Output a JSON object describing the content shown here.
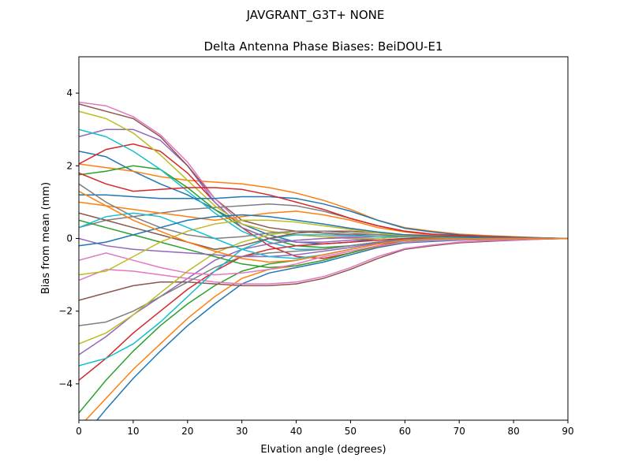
{
  "figure": {
    "suptitle": "JAVGRANT_G3T+   NONE"
  },
  "chart_data": {
    "type": "line",
    "title": "Delta Antenna Phase Biases: BeiDOU-E1",
    "xlabel": "Elvation angle (degrees)",
    "ylabel": "Bias from mean (mm)",
    "xlim": [
      0,
      90
    ],
    "ylim": [
      -5,
      5
    ],
    "xticks": [
      0,
      10,
      20,
      30,
      40,
      50,
      60,
      70,
      80,
      90
    ],
    "yticks": [
      -4,
      -2,
      0,
      2,
      4
    ],
    "grid": false,
    "colors": [
      "#1f77b4",
      "#ff7f0e",
      "#2ca02c",
      "#d62728",
      "#9467bd",
      "#8c564b",
      "#e377c2",
      "#7f7f7f",
      "#bcbd22",
      "#17becf"
    ],
    "x": [
      0,
      5,
      10,
      15,
      20,
      25,
      30,
      35,
      40,
      45,
      50,
      55,
      60,
      65,
      70,
      75,
      80,
      85,
      90
    ],
    "series": [
      {
        "values": [
          2.4,
          2.25,
          1.85,
          1.5,
          1.2,
          0.8,
          0.4,
          0.1,
          -0.1,
          -0.15,
          -0.1,
          0.0,
          0.05,
          0.05,
          0.05,
          0.03,
          0.02,
          0.01,
          0
        ]
      },
      {
        "values": [
          2.05,
          1.95,
          1.85,
          1.7,
          1.6,
          1.55,
          1.5,
          1.4,
          1.25,
          1.05,
          0.8,
          0.5,
          0.3,
          0.2,
          0.12,
          0.08,
          0.05,
          0.02,
          0
        ]
      },
      {
        "values": [
          1.75,
          1.85,
          2.0,
          1.9,
          1.4,
          0.8,
          0.3,
          0.0,
          -0.2,
          -0.25,
          -0.2,
          -0.1,
          0.0,
          0.05,
          0.05,
          0.03,
          0.02,
          0.01,
          0
        ]
      },
      {
        "values": [
          2.05,
          2.45,
          2.6,
          2.4,
          1.8,
          1.0,
          0.3,
          -0.2,
          -0.5,
          -0.55,
          -0.4,
          -0.2,
          -0.05,
          0.02,
          0.04,
          0.03,
          0.02,
          0.01,
          0
        ]
      },
      {
        "values": [
          2.8,
          3.0,
          3.0,
          2.7,
          2.0,
          1.0,
          0.3,
          0.0,
          -0.1,
          -0.1,
          -0.05,
          0.0,
          0.05,
          0.05,
          0.04,
          0.03,
          0.02,
          0.01,
          0
        ]
      },
      {
        "values": [
          3.7,
          3.5,
          3.3,
          2.8,
          2.0,
          1.1,
          0.5,
          0.3,
          0.2,
          0.15,
          0.1,
          0.1,
          0.1,
          0.08,
          0.06,
          0.04,
          0.02,
          0.01,
          0
        ]
      },
      {
        "values": [
          3.75,
          3.65,
          3.35,
          2.85,
          2.1,
          1.1,
          0.4,
          0.2,
          0.1,
          0.05,
          0.05,
          0.1,
          0.1,
          0.1,
          0.05,
          0.05,
          0.02,
          0.01,
          0
        ]
      },
      {
        "values": [
          0.3,
          0.5,
          0.6,
          0.7,
          0.8,
          0.85,
          0.9,
          0.95,
          0.9,
          0.75,
          0.55,
          0.35,
          0.2,
          0.12,
          0.08,
          0.05,
          0.03,
          0.01,
          0
        ]
      },
      {
        "values": [
          3.5,
          3.3,
          2.9,
          2.3,
          1.6,
          0.9,
          0.4,
          0.2,
          0.1,
          0.05,
          0.0,
          0.0,
          0.05,
          0.05,
          0.04,
          0.03,
          0.02,
          0.01,
          0
        ]
      },
      {
        "values": [
          3.0,
          2.8,
          2.4,
          1.9,
          1.3,
          0.7,
          0.2,
          -0.1,
          -0.3,
          -0.3,
          -0.2,
          -0.1,
          0.0,
          0.03,
          0.03,
          0.02,
          0.01,
          0.01,
          0
        ]
      },
      {
        "values": [
          -5.6,
          -4.7,
          -3.85,
          -3.1,
          -2.4,
          -1.8,
          -1.25,
          -0.95,
          -0.8,
          -0.65,
          -0.45,
          -0.25,
          -0.12,
          -0.08,
          -0.05,
          -0.03,
          -0.02,
          -0.01,
          0
        ]
      },
      {
        "values": [
          -5.2,
          -4.4,
          -3.6,
          -2.9,
          -2.2,
          -1.6,
          -1.1,
          -0.85,
          -0.75,
          -0.6,
          -0.4,
          -0.22,
          -0.1,
          -0.06,
          -0.04,
          -0.03,
          -0.02,
          -0.01,
          0
        ]
      },
      {
        "values": [
          -4.8,
          -3.9,
          -3.1,
          -2.4,
          -1.8,
          -1.3,
          -0.9,
          -0.7,
          -0.6,
          -0.45,
          -0.3,
          -0.15,
          -0.05,
          -0.03,
          -0.02,
          -0.01,
          -0.01,
          0,
          0
        ]
      },
      {
        "values": [
          -3.9,
          -3.3,
          -2.6,
          -2.0,
          -1.4,
          -0.9,
          -0.5,
          -0.3,
          -0.2,
          -0.15,
          -0.1,
          -0.05,
          0.0,
          0.02,
          0.02,
          0.01,
          0.01,
          0,
          0
        ]
      },
      {
        "values": [
          -3.2,
          -2.7,
          -2.1,
          -1.6,
          -1.1,
          -0.6,
          -0.3,
          -0.15,
          -0.05,
          0.0,
          0.02,
          0.05,
          0.06,
          0.05,
          0.04,
          0.03,
          0.02,
          0.01,
          0
        ]
      },
      {
        "values": [
          -1.7,
          -1.5,
          -1.3,
          -1.2,
          -1.2,
          -1.25,
          -1.3,
          -1.3,
          -1.25,
          -1.1,
          -0.85,
          -0.55,
          -0.3,
          -0.2,
          -0.12,
          -0.08,
          -0.05,
          -0.02,
          0
        ]
      },
      {
        "values": [
          -1.15,
          -0.85,
          -0.9,
          -1.0,
          -1.1,
          -1.2,
          -1.25,
          -1.25,
          -1.2,
          -1.05,
          -0.8,
          -0.5,
          -0.28,
          -0.18,
          -0.1,
          -0.06,
          -0.04,
          -0.02,
          0
        ]
      },
      {
        "values": [
          -2.4,
          -2.3,
          -2.0,
          -1.6,
          -1.2,
          -0.8,
          -0.5,
          -0.4,
          -0.35,
          -0.3,
          -0.2,
          -0.1,
          -0.03,
          0.0,
          0.01,
          0.01,
          0.01,
          0,
          0
        ]
      },
      {
        "values": [
          -2.9,
          -2.6,
          -2.1,
          -1.5,
          -0.9,
          -0.4,
          -0.1,
          0.1,
          0.2,
          0.2,
          0.15,
          0.1,
          0.08,
          0.06,
          0.04,
          0.03,
          0.02,
          0.01,
          0
        ]
      },
      {
        "values": [
          -3.5,
          -3.3,
          -2.9,
          -2.3,
          -1.6,
          -0.9,
          -0.3,
          0.0,
          0.1,
          0.1,
          0.08,
          0.05,
          0.05,
          0.04,
          0.03,
          0.02,
          0.01,
          0.01,
          0
        ]
      },
      {
        "values": [
          1.2,
          1.2,
          1.15,
          1.1,
          1.1,
          1.1,
          1.15,
          1.15,
          1.1,
          0.95,
          0.75,
          0.5,
          0.28,
          0.18,
          0.1,
          0.06,
          0.04,
          0.02,
          0
        ]
      },
      {
        "values": [
          1.0,
          0.9,
          0.8,
          0.7,
          0.6,
          0.5,
          0.6,
          0.7,
          0.75,
          0.65,
          0.5,
          0.3,
          0.18,
          0.1,
          0.06,
          0.04,
          0.02,
          0.01,
          0
        ]
      },
      {
        "values": [
          0.5,
          0.3,
          0.1,
          -0.1,
          -0.3,
          -0.5,
          -0.7,
          -0.8,
          -0.75,
          -0.6,
          -0.4,
          -0.2,
          -0.1,
          -0.05,
          -0.03,
          -0.02,
          -0.01,
          0,
          0
        ]
      },
      {
        "values": [
          1.8,
          1.5,
          1.3,
          1.35,
          1.4,
          1.4,
          1.35,
          1.2,
          1.0,
          0.8,
          0.55,
          0.35,
          0.2,
          0.12,
          0.08,
          0.05,
          0.03,
          0.01,
          0
        ]
      },
      {
        "values": [
          0.0,
          -0.2,
          -0.3,
          -0.35,
          -0.4,
          -0.45,
          -0.5,
          -0.5,
          -0.45,
          -0.35,
          -0.25,
          -0.12,
          -0.05,
          -0.02,
          -0.01,
          0,
          0,
          0,
          0
        ]
      },
      {
        "values": [
          0.7,
          0.5,
          0.3,
          0.1,
          -0.1,
          -0.3,
          -0.2,
          0.0,
          0.15,
          0.2,
          0.2,
          0.15,
          0.1,
          0.07,
          0.05,
          0.03,
          0.02,
          0.01,
          0
        ]
      },
      {
        "values": [
          -0.6,
          -0.4,
          -0.6,
          -0.8,
          -0.95,
          -1.0,
          -0.95,
          -0.85,
          -0.7,
          -0.5,
          -0.35,
          -0.2,
          -0.1,
          -0.06,
          -0.04,
          -0.02,
          -0.01,
          0,
          0
        ]
      },
      {
        "values": [
          1.5,
          1.0,
          0.6,
          0.3,
          0.1,
          0.0,
          0.05,
          0.15,
          0.2,
          0.2,
          0.15,
          0.1,
          0.06,
          0.04,
          0.03,
          0.02,
          0.01,
          0.01,
          0
        ]
      },
      {
        "values": [
          -1.0,
          -0.9,
          -0.5,
          -0.1,
          0.2,
          0.4,
          0.5,
          0.5,
          0.45,
          0.35,
          0.25,
          0.15,
          0.08,
          0.05,
          0.03,
          0.02,
          0.01,
          0,
          0
        ]
      },
      {
        "values": [
          0.3,
          0.6,
          0.7,
          0.6,
          0.3,
          0.0,
          -0.3,
          -0.5,
          -0.55,
          -0.45,
          -0.3,
          -0.15,
          -0.06,
          -0.03,
          -0.02,
          -0.01,
          0,
          0,
          0
        ]
      },
      {
        "values": [
          -0.2,
          -0.1,
          0.1,
          0.3,
          0.5,
          0.6,
          0.65,
          0.6,
          0.5,
          0.4,
          0.28,
          0.18,
          0.1,
          0.06,
          0.04,
          0.02,
          0.01,
          0,
          0
        ]
      },
      {
        "values": [
          1.3,
          0.9,
          0.5,
          0.2,
          -0.1,
          -0.35,
          -0.55,
          -0.65,
          -0.6,
          -0.45,
          -0.3,
          -0.15,
          -0.05,
          -0.02,
          -0.01,
          0,
          0,
          0,
          0
        ]
      }
    ]
  }
}
